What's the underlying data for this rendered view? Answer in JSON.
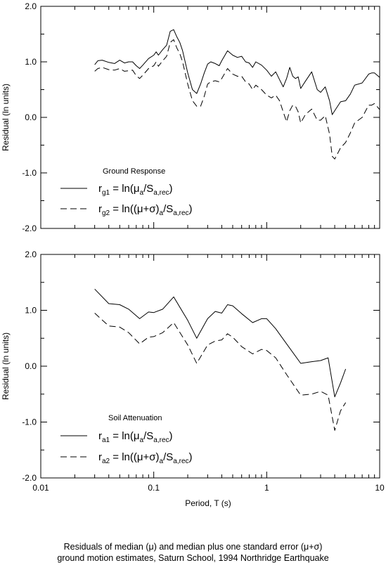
{
  "figure": {
    "caption_line1": "Residuals of median (μ) and median plus one standard error (μ+σ)",
    "caption_line2": "ground motion estimates, Saturn School, 1994 Northridge Earthquake",
    "x_axis_label": "Period, T (s)",
    "x_tick_labels": [
      "0.01",
      "0.1",
      "1",
      "10"
    ]
  },
  "colors": {
    "line": "#000000",
    "frame": "#000000"
  },
  "chart_data": [
    {
      "type": "line",
      "title": "Ground Response",
      "xlabel": "Period, T (s)",
      "ylabel": "Residual (ln units)",
      "xscale": "log",
      "xlim": [
        0.01,
        10
      ],
      "ylim": [
        -2.0,
        2.0
      ],
      "y_tick_labels": [
        "2.0",
        "1.0",
        "0.0",
        "-1.0",
        "-2.0"
      ],
      "legend": [
        {
          "style": "solid",
          "sym": "r",
          "sub": "g1",
          "eq_pre": " = ln(μ",
          "eq_sub": "a",
          "eq_mid": "/S",
          "eq_sub2": "a,rec",
          "eq_post": ")"
        },
        {
          "style": "dashed",
          "sym": "r",
          "sub": "g2",
          "eq_pre": " = ln((μ+σ)",
          "eq_sub": "a",
          "eq_mid": "/S",
          "eq_sub2": "a,rec",
          "eq_post": ")"
        }
      ],
      "series": [
        {
          "style": "solid",
          "x": [
            0.03,
            0.032,
            0.035,
            0.04,
            0.045,
            0.05,
            0.055,
            0.06,
            0.065,
            0.07,
            0.075,
            0.08,
            0.09,
            0.1,
            0.105,
            0.11,
            0.12,
            0.13,
            0.14,
            0.15,
            0.16,
            0.17,
            0.18,
            0.2,
            0.22,
            0.24,
            0.26,
            0.28,
            0.3,
            0.32,
            0.35,
            0.38,
            0.4,
            0.45,
            0.5,
            0.55,
            0.6,
            0.65,
            0.7,
            0.75,
            0.8,
            0.9,
            1.0,
            1.1,
            1.2,
            1.3,
            1.4,
            1.5,
            1.6,
            1.7,
            1.8,
            1.9,
            2.0,
            2.2,
            2.5,
            2.8,
            3.0,
            3.3,
            3.6,
            3.8,
            4.0,
            4.5,
            5.0,
            5.5,
            6.0,
            7.0,
            8.0,
            8.5,
            9.0,
            10.0
          ],
          "y": [
            0.95,
            1.02,
            1.03,
            0.99,
            0.97,
            1.03,
            0.98,
            1.0,
            1.0,
            0.93,
            0.88,
            0.94,
            1.06,
            1.12,
            1.18,
            1.12,
            1.22,
            1.3,
            1.55,
            1.58,
            1.45,
            1.35,
            1.2,
            0.8,
            0.5,
            0.43,
            0.6,
            0.8,
            0.96,
            1.0,
            0.97,
            0.93,
            1.02,
            1.2,
            1.12,
            1.08,
            1.1,
            1.0,
            0.98,
            0.9,
            1.0,
            0.94,
            0.85,
            0.74,
            0.82,
            0.68,
            0.55,
            0.7,
            0.9,
            0.74,
            0.7,
            0.73,
            0.52,
            0.65,
            0.82,
            0.5,
            0.45,
            0.55,
            0.3,
            0.05,
            0.12,
            0.28,
            0.3,
            0.42,
            0.58,
            0.62,
            0.78,
            0.8,
            0.8,
            0.72
          ]
        },
        {
          "style": "dashed",
          "x": [
            0.03,
            0.032,
            0.035,
            0.04,
            0.045,
            0.05,
            0.055,
            0.06,
            0.065,
            0.07,
            0.075,
            0.08,
            0.09,
            0.1,
            0.105,
            0.11,
            0.12,
            0.13,
            0.14,
            0.15,
            0.16,
            0.17,
            0.18,
            0.2,
            0.22,
            0.24,
            0.26,
            0.28,
            0.3,
            0.32,
            0.35,
            0.38,
            0.4,
            0.45,
            0.5,
            0.55,
            0.6,
            0.65,
            0.7,
            0.75,
            0.8,
            0.9,
            1.0,
            1.1,
            1.2,
            1.3,
            1.4,
            1.5,
            1.6,
            1.7,
            1.8,
            1.9,
            2.0,
            2.2,
            2.5,
            2.8,
            3.0,
            3.3,
            3.6,
            3.8,
            4.0,
            4.5,
            5.0,
            5.5,
            6.0,
            7.0,
            8.0,
            8.5,
            9.0,
            10.0
          ],
          "y": [
            0.83,
            0.88,
            0.9,
            0.86,
            0.85,
            0.88,
            0.83,
            0.84,
            0.85,
            0.75,
            0.7,
            0.76,
            0.88,
            0.93,
            1.0,
            0.92,
            1.02,
            1.1,
            1.35,
            1.4,
            1.25,
            1.15,
            1.0,
            0.6,
            0.3,
            0.2,
            0.2,
            0.38,
            0.6,
            0.64,
            0.66,
            0.64,
            0.7,
            0.88,
            0.78,
            0.74,
            0.74,
            0.64,
            0.6,
            0.5,
            0.58,
            0.5,
            0.4,
            0.35,
            0.4,
            0.3,
            0.1,
            -0.08,
            0.12,
            0.22,
            0.2,
            0.1,
            -0.1,
            0.05,
            0.15,
            -0.05,
            -0.05,
            0.03,
            -0.3,
            -0.7,
            -0.75,
            -0.55,
            -0.45,
            -0.28,
            -0.1,
            0.0,
            0.22,
            0.22,
            0.25,
            0.14
          ]
        }
      ]
    },
    {
      "type": "line",
      "title": "Soil Attenuation",
      "xlabel": "Period, T (s)",
      "ylabel": "Residual (ln units)",
      "xscale": "log",
      "xlim": [
        0.01,
        10
      ],
      "ylim": [
        -2.0,
        2.0
      ],
      "y_tick_labels": [
        "2.0",
        "1.0",
        "0.0",
        "-1.0",
        "-2.0"
      ],
      "legend": [
        {
          "style": "solid",
          "sym": "r",
          "sub": "a1",
          "eq_pre": " = ln(μ",
          "eq_sub": "a",
          "eq_mid": "/S",
          "eq_sub2": "a,rec",
          "eq_post": ")"
        },
        {
          "style": "dashed",
          "sym": "r",
          "sub": "a2",
          "eq_pre": " = ln((μ+σ)",
          "eq_sub": "a",
          "eq_mid": "/S",
          "eq_sub2": "a,rec",
          "eq_post": ")"
        }
      ],
      "series": [
        {
          "style": "solid",
          "x": [
            0.03,
            0.04,
            0.05,
            0.06,
            0.075,
            0.09,
            0.1,
            0.12,
            0.15,
            0.2,
            0.24,
            0.3,
            0.35,
            0.4,
            0.45,
            0.5,
            0.6,
            0.75,
            0.9,
            1.0,
            1.2,
            1.5,
            2.0,
            2.5,
            3.0,
            3.5,
            4.0,
            4.5,
            5.0
          ],
          "y": [
            1.38,
            1.12,
            1.1,
            1.02,
            0.85,
            0.97,
            0.96,
            1.02,
            1.24,
            0.82,
            0.5,
            0.85,
            0.98,
            0.95,
            1.1,
            1.08,
            0.94,
            0.78,
            0.85,
            0.85,
            0.67,
            0.4,
            0.05,
            0.08,
            0.1,
            0.15,
            -0.55,
            -0.3,
            -0.05
          ]
        },
        {
          "style": "dashed",
          "x": [
            0.03,
            0.04,
            0.05,
            0.06,
            0.075,
            0.09,
            0.1,
            0.12,
            0.15,
            0.2,
            0.24,
            0.3,
            0.35,
            0.4,
            0.45,
            0.5,
            0.6,
            0.75,
            0.9,
            1.0,
            1.2,
            1.5,
            2.0,
            2.5,
            3.0,
            3.5,
            4.0,
            4.5,
            5.0
          ],
          "y": [
            0.95,
            0.72,
            0.7,
            0.6,
            0.4,
            0.52,
            0.53,
            0.6,
            0.78,
            0.38,
            0.05,
            0.38,
            0.45,
            0.47,
            0.58,
            0.52,
            0.35,
            0.22,
            0.3,
            0.28,
            0.15,
            -0.15,
            -0.52,
            -0.5,
            -0.45,
            -0.52,
            -1.15,
            -0.8,
            -0.65
          ]
        }
      ]
    }
  ]
}
